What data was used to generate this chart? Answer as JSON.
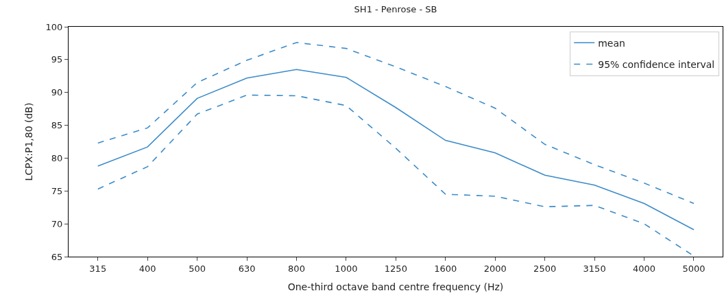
{
  "chart_data": {
    "type": "line",
    "title": "SH1 - Penrose - SB",
    "xlabel": "One-third octave band centre frequency (Hz)",
    "ylabel": "LCPX:P1,80 (dB)",
    "categories": [
      "315",
      "400",
      "500",
      "630",
      "800",
      "1000",
      "1250",
      "1600",
      "2000",
      "2500",
      "3150",
      "4000",
      "5000"
    ],
    "series": [
      {
        "name": "mean",
        "color": "#3b8bc9",
        "line_style": "solid",
        "values": [
          78.8,
          81.7,
          89.1,
          92.2,
          93.5,
          92.3,
          87.7,
          82.7,
          80.8,
          77.4,
          75.9,
          73.1,
          69.1
        ]
      },
      {
        "name": "95% confidence interval",
        "color": "#3b8bc9",
        "line_style": "dashed",
        "values": [
          82.3,
          84.6,
          91.5,
          94.9,
          97.6,
          96.7,
          93.9,
          90.9,
          87.6,
          82.1,
          79.0,
          76.2,
          73.1
        ]
      },
      {
        "color": "#3b8bc9",
        "line_style": "dashed",
        "values": [
          75.3,
          78.7,
          86.7,
          89.6,
          89.5,
          88.0,
          81.5,
          74.5,
          74.2,
          72.6,
          72.8,
          70.0,
          65.1
        ]
      }
    ],
    "ylim": [
      65,
      100
    ],
    "yticks": [
      65,
      70,
      75,
      80,
      85,
      90,
      95,
      100
    ],
    "legend": "top right",
    "marker": "none"
  }
}
